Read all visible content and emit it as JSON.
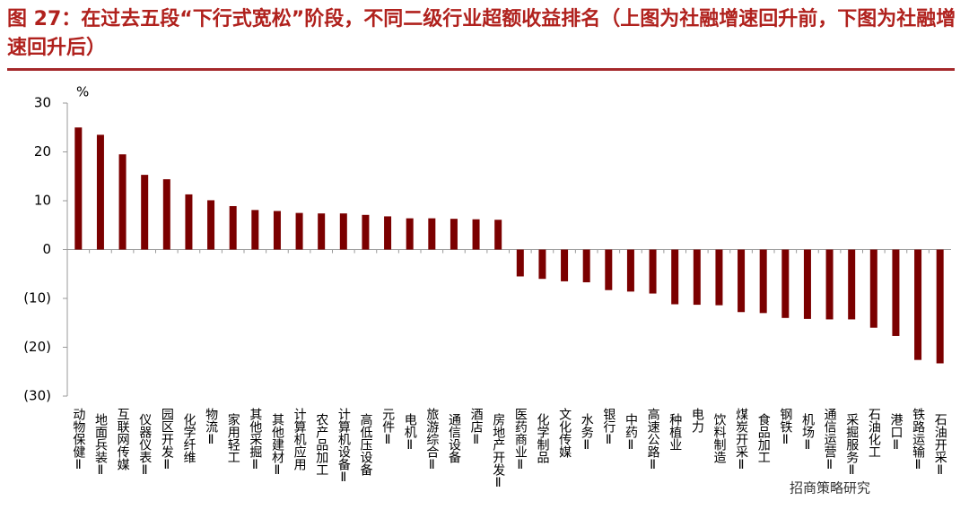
{
  "chart_data": {
    "type": "bar",
    "title": "图 27：在过去五段“下行式宽松”阶段，不同二级行业超额收益排名（上图为社融增速回升前，下图为社融增速回升后）",
    "y_unit": "%",
    "watermark": "招商策略研究",
    "color": "#7b0000",
    "negative_tick_color": "#e02020",
    "ylim": [
      -30,
      30
    ],
    "yticks": [
      30,
      20,
      10,
      0,
      {
        "value": -10,
        "label": "(10)"
      },
      {
        "value": -20,
        "label": "(20)"
      },
      {
        "value": -30,
        "label": "(30)"
      }
    ],
    "categories": [
      "动物保健Ⅱ",
      "地面兵装Ⅱ",
      "互联网传媒",
      "仪器仪表Ⅱ",
      "园区开发Ⅱ",
      "化学纤维",
      "物流Ⅱ",
      "家用轻工",
      "其他采掘Ⅱ",
      "其他建材Ⅱ",
      "计算机应用",
      "农产品加工",
      "计算机设备Ⅱ",
      "高低压设备",
      "元件Ⅱ",
      "电机Ⅱ",
      "旅游综合Ⅱ",
      "通信设备",
      "酒店Ⅱ",
      "房地产开发Ⅱ",
      "医药商业Ⅱ",
      "化学制品",
      "文化传媒",
      "水务Ⅱ",
      "银行Ⅱ",
      "中药Ⅱ",
      "高速公路Ⅱ",
      "种植业",
      "电力",
      "饮料制造",
      "煤炭开采Ⅱ",
      "食品加工",
      "钢铁Ⅱ",
      "机场Ⅱ",
      "通信运营Ⅱ",
      "采掘服务Ⅱ",
      "石油化工",
      "港口Ⅱ",
      "铁路运输Ⅱ",
      "石油开采Ⅱ"
    ],
    "values": [
      25,
      23.5,
      19.5,
      15.3,
      14.4,
      11.3,
      10.1,
      8.9,
      8.1,
      7.9,
      7.5,
      7.4,
      7.4,
      7.1,
      6.8,
      6.4,
      6.4,
      6.3,
      6.2,
      6.1,
      -5.5,
      -6,
      -6.5,
      -6.7,
      -8.3,
      -8.6,
      -9,
      -11.2,
      -11.3,
      -11.4,
      -12.8,
      -13,
      -14,
      -14.2,
      -14.3,
      -14.3,
      -16,
      -17.7,
      -22.6,
      -23.3
    ]
  }
}
